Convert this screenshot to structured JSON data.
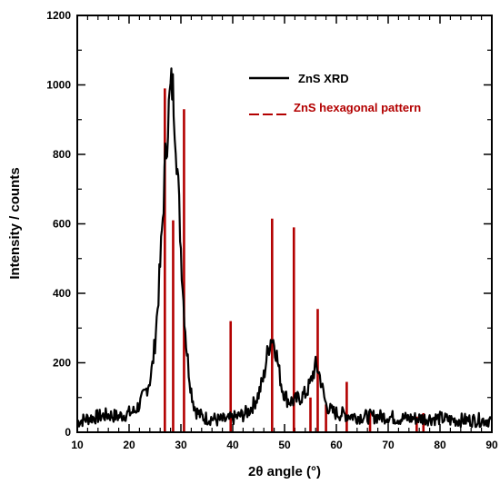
{
  "chart_data": {
    "type": "line",
    "title": "",
    "xlabel": "2θ angle (°)",
    "ylabel": "Intensity / counts",
    "xlim": [
      10,
      90
    ],
    "ylim": [
      0,
      1200
    ],
    "x_ticks": [
      10,
      20,
      30,
      40,
      50,
      60,
      70,
      80,
      90
    ],
    "y_ticks": [
      0,
      200,
      400,
      600,
      800,
      1000,
      1200
    ],
    "grid": false,
    "legend_position": "top-right",
    "series": [
      {
        "name": "ZnS XRD",
        "kind": "line",
        "color": "#000000",
        "x": [
          10,
          12,
          14,
          16,
          18,
          20,
          21,
          22,
          23,
          24,
          24.5,
          25,
          25.5,
          26,
          26.5,
          27,
          27.5,
          28,
          28.3,
          28.6,
          29,
          29.5,
          30,
          30.5,
          31,
          31.5,
          32,
          32.5,
          33,
          34,
          35,
          36,
          37,
          38,
          39,
          40,
          41,
          42,
          43,
          44,
          45,
          46,
          46.5,
          47,
          47.5,
          48,
          48.5,
          49,
          49.5,
          50,
          50.5,
          51,
          52,
          53,
          54,
          55,
          55.5,
          56,
          56.5,
          57,
          57.5,
          58,
          59,
          60,
          62,
          64,
          66,
          68,
          70,
          72,
          74,
          76,
          78,
          80,
          82,
          84,
          86,
          88,
          90
        ],
        "y": [
          30,
          40,
          45,
          50,
          45,
          55,
          60,
          80,
          110,
          150,
          190,
          260,
          360,
          480,
          620,
          780,
          900,
          980,
          1000,
          960,
          860,
          700,
          530,
          380,
          260,
          180,
          120,
          80,
          60,
          45,
          40,
          40,
          35,
          35,
          35,
          40,
          45,
          50,
          60,
          80,
          110,
          160,
          210,
          250,
          275,
          260,
          220,
          170,
          130,
          110,
          95,
          90,
          90,
          100,
          110,
          140,
          170,
          190,
          180,
          150,
          110,
          80,
          60,
          55,
          50,
          45,
          45,
          45,
          45,
          40,
          40,
          40,
          40,
          40,
          35,
          35,
          35,
          35,
          35
        ]
      },
      {
        "name": "ZnS hexagonal pattern",
        "kind": "stick",
        "color": "#b30000",
        "x": [
          26.9,
          28.5,
          30.6,
          39.6,
          47.6,
          51.8,
          55.0,
          56.4,
          58.0,
          62.0,
          66.5,
          75.5,
          76.8
        ],
        "y": [
          990,
          610,
          930,
          320,
          615,
          590,
          100,
          355,
          80,
          145,
          60,
          45,
          55
        ]
      }
    ]
  }
}
